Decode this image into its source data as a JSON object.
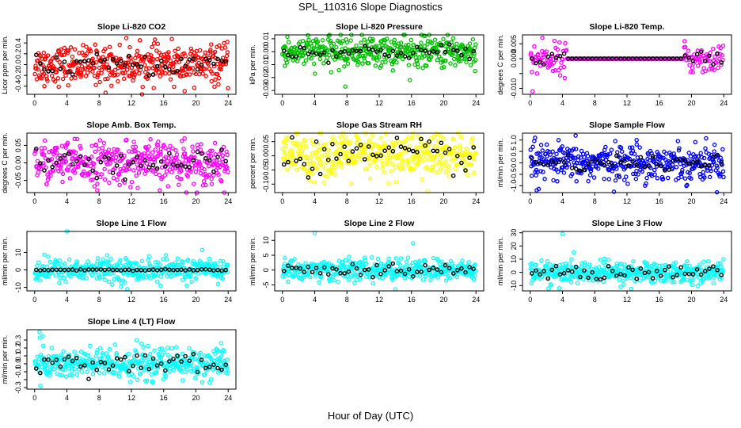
{
  "title": "SPL_110316  Slope Diagnostics",
  "xlabel": "Hour of Day (UTC)",
  "chart_data": [
    {
      "type": "scatter",
      "title": "Slope Li-820 CO2",
      "ylabel": "Licor ppm per min.",
      "xlim": [
        0,
        24
      ],
      "ylim": [
        -0.55,
        0.55
      ],
      "xticks": [
        0,
        4,
        8,
        12,
        16,
        20,
        24
      ],
      "yticks": [
        -0.4,
        -0.2,
        0.0,
        0.2,
        0.4
      ],
      "yticklabels": [
        "-0.4",
        "-0.2",
        "0.0",
        "0.2",
        "0.4"
      ],
      "color": "#ff0000",
      "spread": 0.17,
      "n": 420,
      "outliers": [
        [
          8.8,
          -0.52
        ],
        [
          19.8,
          -0.43
        ],
        [
          23.9,
          0.42
        ],
        [
          1.2,
          -0.4
        ]
      ],
      "series_black_spread": 0.1,
      "grid": false
    },
    {
      "type": "scatter",
      "title": "Slope Li-820 Pressure",
      "ylabel": "kPa per min.",
      "xlim": [
        0,
        24
      ],
      "ylim": [
        -0.033,
        0.013
      ],
      "xticks": [
        0,
        4,
        8,
        12,
        16,
        20,
        24
      ],
      "yticks": [
        -0.03,
        -0.02,
        -0.01,
        0.0,
        0.01
      ],
      "yticklabels": [
        "-0.03",
        "-0.02",
        "-0.01",
        "0.00",
        "0.01"
      ],
      "color": "#00c000",
      "spread": 0.006,
      "n": 420,
      "outliers": [
        [
          7.8,
          -0.027
        ],
        [
          15.8,
          -0.022
        ],
        [
          23.9,
          -0.015
        ],
        [
          0.3,
          -0.011
        ]
      ],
      "series_black_spread": 0.003,
      "grid": false
    },
    {
      "type": "scatter",
      "title": "Slope Li-820 Temp.",
      "ylabel": "degrees C per min.",
      "xlim": [
        0,
        24
      ],
      "ylim": [
        -0.012,
        0.008
      ],
      "xticks": [
        0,
        4,
        8,
        12,
        16,
        20,
        24
      ],
      "yticks": [
        -0.01,
        -0.005,
        0.0,
        0.005
      ],
      "yticklabels": [
        "-0.010",
        "",
        "0.000",
        "0.005"
      ],
      "color": "#ff00ff",
      "spread": 0.0025,
      "n": 300,
      "flat_range": [
        4.5,
        19
      ],
      "outliers": [
        [
          0.3,
          -0.011
        ],
        [
          1.5,
          0.007
        ]
      ],
      "series_black_spread": 0.0012,
      "grid": false
    },
    {
      "type": "scatter",
      "title": "Slope Amb. Box Temp.",
      "ylabel": "degrees C per min.",
      "xlim": [
        0,
        24
      ],
      "ylim": [
        -0.085,
        0.085
      ],
      "xticks": [
        0,
        4,
        8,
        12,
        16,
        20,
        24
      ],
      "yticks": [
        -0.05,
        0.0,
        0.05
      ],
      "yticklabels": [
        "-0.05",
        "0.00",
        "0.05"
      ],
      "color": "#ff00ff",
      "spread": 0.03,
      "n": 420,
      "outliers": [
        [
          18.6,
          0.07
        ],
        [
          12.3,
          0.06
        ]
      ],
      "series_black_spread": 0.02,
      "grid": false
    },
    {
      "type": "scatter",
      "title": "Slope Gas Stream RH",
      "ylabel": "percent per min.",
      "xlim": [
        0,
        24
      ],
      "ylim": [
        -0.13,
        0.08
      ],
      "xticks": [
        0,
        4,
        8,
        12,
        16,
        20,
        24
      ],
      "yticks": [
        -0.1,
        -0.05,
        0.0,
        0.05
      ],
      "yticklabels": [
        "-0.10",
        "-0.05",
        "0.00",
        "0.05"
      ],
      "color": "#ffff00",
      "spread": 0.04,
      "n": 420,
      "outliers": [
        [
          18,
          -0.125
        ],
        [
          16.8,
          0.07
        ]
      ],
      "series_black_spread": 0.03,
      "grid": false
    },
    {
      "type": "scatter",
      "title": "Slope Sample Flow",
      "ylabel": "ml/min per min.",
      "xlim": [
        0,
        24
      ],
      "ylim": [
        -1.3,
        1.3
      ],
      "xticks": [
        0,
        4,
        8,
        12,
        16,
        20,
        24
      ],
      "yticks": [
        -1.0,
        -0.5,
        0.0,
        0.5,
        1.0
      ],
      "yticklabels": [
        "-1.0",
        "-0.5",
        "0.0",
        "0.5",
        "1.0"
      ],
      "color": "#0000ff",
      "spread": 0.38,
      "n": 420,
      "outliers": [
        [
          0.8,
          -1.2
        ],
        [
          0.6,
          1.1
        ],
        [
          13.2,
          1.0
        ],
        [
          7.2,
          -0.8
        ]
      ],
      "series_black_spread": 0.2,
      "grid": false
    },
    {
      "type": "scatter",
      "title": "Slope Line 1 Flow",
      "ylabel": "ml/min per min.",
      "xlim": [
        0,
        24
      ],
      "ylim": [
        -12,
        22
      ],
      "xticks": [
        0,
        4,
        8,
        12,
        16,
        20,
        24
      ],
      "yticks": [
        -10,
        0,
        10
      ],
      "yticklabels": [
        "-10",
        "0",
        "10"
      ],
      "color": "#00ffff",
      "spread": 3.2,
      "n": 420,
      "outliers": [
        [
          4,
          22
        ],
        [
          11.5,
          -11
        ],
        [
          15.6,
          -9
        ]
      ],
      "series_black_spread": 0.25,
      "grid": false
    },
    {
      "type": "scatter",
      "title": "Slope Line 2 Flow",
      "ylabel": "ml/min per min.",
      "xlim": [
        0,
        24
      ],
      "ylim": [
        -7,
        13
      ],
      "xticks": [
        0,
        4,
        8,
        12,
        16,
        20,
        24
      ],
      "yticks": [
        -5,
        0,
        5,
        10
      ],
      "yticklabels": [
        "-5",
        "0",
        "5",
        "10"
      ],
      "color": "#00ffff",
      "spread": 1.8,
      "n": 420,
      "outliers": [
        [
          4,
          12.5
        ],
        [
          16.2,
          9
        ],
        [
          14,
          -6.5
        ]
      ],
      "series_black_spread": 1.2,
      "grid": false
    },
    {
      "type": "scatter",
      "title": "Slope Line 3 Flow",
      "ylabel": "ml/min per min.",
      "xlim": [
        0,
        24
      ],
      "ylim": [
        -14,
        31
      ],
      "xticks": [
        0,
        4,
        8,
        12,
        16,
        20,
        24
      ],
      "yticks": [
        -10,
        0,
        10,
        20,
        30
      ],
      "yticklabels": [
        "-10",
        "0",
        "10",
        "20",
        "30"
      ],
      "color": "#00ffff",
      "spread": 4,
      "n": 420,
      "outliers": [
        [
          4,
          29
        ],
        [
          3.6,
          -12
        ],
        [
          11.2,
          -11
        ]
      ],
      "series_black_spread": 3,
      "grid": false
    },
    {
      "type": "scatter",
      "title": "Slope Line 4 (LT) Flow",
      "ylabel": "ml/min per min.",
      "xlim": [
        0,
        24
      ],
      "ylim": [
        -0.32,
        0.43
      ],
      "xticks": [
        0,
        4,
        8,
        12,
        16,
        20,
        24
      ],
      "yticks": [
        -0.3,
        -0.2,
        -0.1,
        0.0,
        0.1,
        0.2,
        0.3
      ],
      "yticklabels": [
        "-0.3",
        "",
        "-0.1",
        "0.0",
        "0.1",
        "0.2",
        "0.3"
      ],
      "color": "#00ffff",
      "spread": 0.1,
      "n": 420,
      "outliers": [
        [
          0.6,
          0.4
        ],
        [
          1,
          0.35
        ],
        [
          14.6,
          -0.22
        ]
      ],
      "series_black_spread": 0.08,
      "grid": false
    }
  ]
}
